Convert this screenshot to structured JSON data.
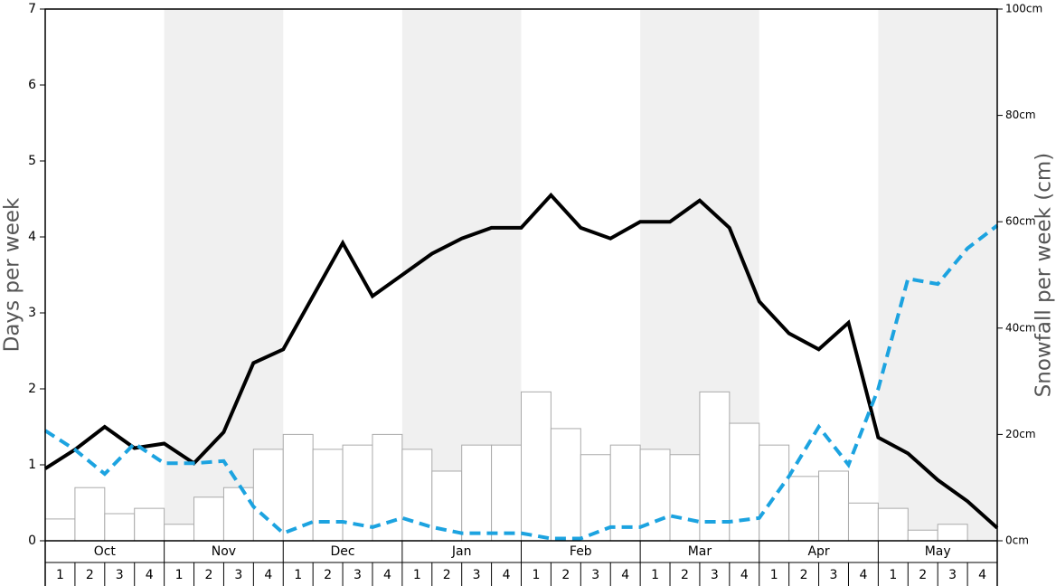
{
  "chart_data": {
    "type": "combo",
    "y_label": "Days per week",
    "y2_label": "Snowfall per week (cm)",
    "months": [
      "Oct",
      "Nov",
      "Dec",
      "Jan",
      "Feb",
      "Mar",
      "Apr",
      "May"
    ],
    "categories": [
      "1",
      "2",
      "3",
      "4",
      "1",
      "2",
      "3",
      "4",
      "1",
      "2",
      "3",
      "4",
      "1",
      "2",
      "3",
      "4",
      "1",
      "2",
      "3",
      "4",
      "1",
      "2",
      "3",
      "4",
      "1",
      "2",
      "3",
      "4",
      "1",
      "2",
      "3",
      "4"
    ],
    "xlim": [
      0,
      32
    ],
    "ylim": [
      0,
      7
    ],
    "yticks": [
      0,
      1,
      2,
      3,
      4,
      5,
      6,
      7
    ],
    "y2lim": [
      0,
      100
    ],
    "y2ticks": [
      {
        "value": 0,
        "label": "0cm"
      },
      {
        "value": 20,
        "label": "20cm"
      },
      {
        "value": 40,
        "label": "40cm"
      },
      {
        "value": 60,
        "label": "60cm"
      },
      {
        "value": 80,
        "label": "80cm"
      },
      {
        "value": 100,
        "label": "100cm"
      }
    ],
    "series": [
      {
        "type": "bar",
        "axis": "y2",
        "color": "#ffffff",
        "values": [
          4.1,
          10,
          5.1,
          6.1,
          3.1,
          8.2,
          10,
          17.2,
          20,
          17.2,
          18,
          20,
          17.2,
          13.1,
          18,
          18,
          28,
          21.1,
          16.2,
          18,
          17.2,
          16.2,
          28,
          22.1,
          18,
          12.1,
          13.1,
          7.1,
          6.1,
          2,
          3.1,
          0
        ]
      },
      {
        "type": "line",
        "color": "#000000",
        "dashed": false,
        "x": [
          0,
          1,
          2,
          3,
          4,
          5,
          6,
          7,
          8,
          9,
          10,
          11,
          12,
          13,
          14,
          15,
          16,
          17,
          18,
          19,
          20,
          21,
          22,
          23,
          24,
          25,
          26,
          27,
          28,
          29,
          30,
          31,
          32
        ],
        "values": [
          0.95,
          1.2,
          1.5,
          1.22,
          1.28,
          1.02,
          1.43,
          2.34,
          2.52,
          3.22,
          3.92,
          3.22,
          3.5,
          3.78,
          3.98,
          4.12,
          4.12,
          4.55,
          4.12,
          3.98,
          4.2,
          4.2,
          4.48,
          4.12,
          3.15,
          2.73,
          2.52,
          2.87,
          1.36,
          1.15,
          0.8,
          0.52,
          0.17
        ]
      },
      {
        "type": "line",
        "color": "#1ca3e0",
        "dashed": true,
        "x": [
          0,
          1,
          2,
          3,
          4,
          5,
          6,
          7,
          8,
          9,
          10,
          11,
          12,
          13,
          14,
          15,
          16,
          17,
          18,
          19,
          20,
          21,
          22,
          23,
          24,
          25,
          26,
          27,
          28,
          29,
          30,
          31,
          32
        ],
        "values": [
          1.45,
          1.2,
          0.88,
          1.28,
          1.02,
          1.02,
          1.05,
          0.45,
          0.1,
          0.25,
          0.25,
          0.18,
          0.3,
          0.18,
          0.1,
          0.1,
          0.1,
          0.03,
          0.03,
          0.18,
          0.18,
          0.33,
          0.25,
          0.25,
          0.3,
          0.85,
          1.5,
          1.0,
          2.0,
          3.45,
          3.38,
          3.85,
          4.15
        ]
      }
    ]
  }
}
